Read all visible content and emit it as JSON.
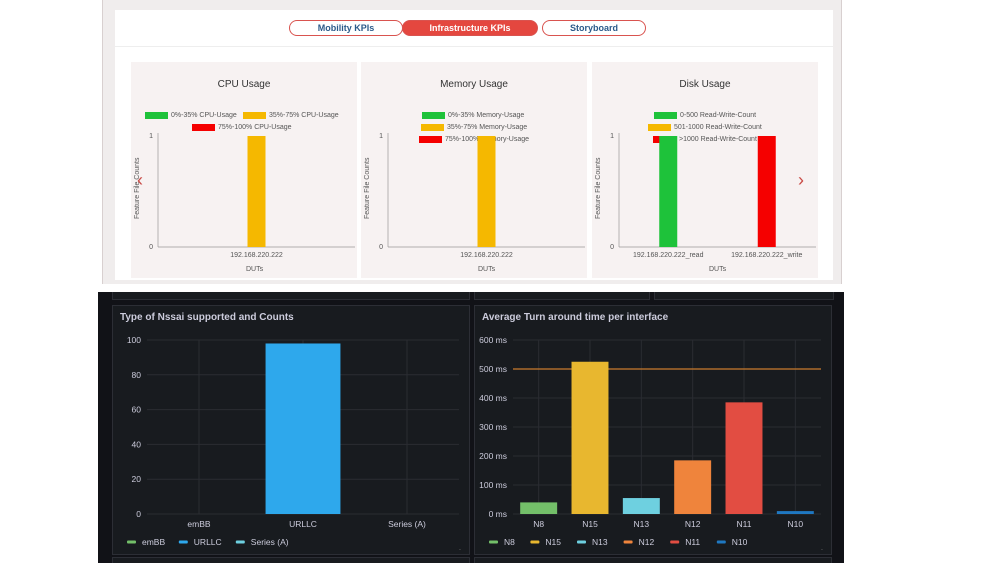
{
  "tabs": [
    {
      "label": "Mobility KPIs",
      "active": false
    },
    {
      "label": "Infrastructure KPIs",
      "active": true
    },
    {
      "label": "Storyboard",
      "active": false
    }
  ],
  "colors": {
    "green": "#1ec23a",
    "yellow": "#f5b800",
    "red": "#f50000",
    "accent": "#e4473f"
  },
  "kpi_cards": [
    {
      "title": "CPU Usage",
      "legend": [
        "0%-35% CPU-Usage",
        "35%-75% CPU-Usage",
        "75%-100% CPU-Usage"
      ],
      "ylabel": "Feature File Counts",
      "xlabel": "DUTs",
      "yticks": [
        "0",
        "1"
      ]
    },
    {
      "title": "Memory Usage",
      "legend": [
        "0%-35% Memory-Usage",
        "35%-75% Memory-Usage",
        "75%-100% Memory-Usage"
      ],
      "ylabel": "Feature File Counts",
      "xlabel": "DUTs",
      "yticks": [
        "0",
        "1"
      ]
    },
    {
      "title": "Disk Usage",
      "legend": [
        "0-500 Read-Write-Count",
        "501-1000 Read-Write-Count",
        ">1000 Read-Write-Count"
      ],
      "ylabel": "Feature File Counts",
      "xlabel": "DUTs",
      "yticks": [
        "0",
        "1"
      ]
    }
  ],
  "nav": {
    "prev_icon": "chevron-left-icon",
    "next_icon": "chevron-right-icon"
  },
  "panels": {
    "nssai": {
      "title": "Type of Nssai supported and Counts"
    },
    "turnaround": {
      "title": "Average Turn around time per interface"
    }
  },
  "chart_data": [
    {
      "type": "bar",
      "title": "CPU Usage",
      "xlabel": "DUTs",
      "ylabel": "Feature File Counts",
      "categories": [
        "192.168.220.222"
      ],
      "series": [
        {
          "name": "0%-35% CPU-Usage",
          "color": "#1ec23a",
          "values": [
            0
          ]
        },
        {
          "name": "35%-75% CPU-Usage",
          "color": "#f5b800",
          "values": [
            1
          ]
        },
        {
          "name": "75%-100% CPU-Usage",
          "color": "#f50000",
          "values": [
            0
          ]
        }
      ],
      "ylim": [
        0,
        1
      ],
      "legend": "top"
    },
    {
      "type": "bar",
      "title": "Memory Usage",
      "xlabel": "DUTs",
      "ylabel": "Feature File Counts",
      "categories": [
        "192.168.220.222"
      ],
      "series": [
        {
          "name": "0%-35% Memory-Usage",
          "color": "#1ec23a",
          "values": [
            0
          ]
        },
        {
          "name": "35%-75% Memory-Usage",
          "color": "#f5b800",
          "values": [
            1
          ]
        },
        {
          "name": "75%-100% Memory-Usage",
          "color": "#f50000",
          "values": [
            0
          ]
        }
      ],
      "ylim": [
        0,
        1
      ],
      "legend": "top"
    },
    {
      "type": "bar",
      "title": "Disk Usage",
      "xlabel": "DUTs",
      "ylabel": "Feature File Counts",
      "categories": [
        "192.168.220.222_read",
        "192.168.220.222_write"
      ],
      "series": [
        {
          "name": "0-500 Read-Write-Count",
          "color": "#1ec23a",
          "values": [
            1,
            0
          ]
        },
        {
          "name": "501-1000 Read-Write-Count",
          "color": "#f5b800",
          "values": [
            0,
            0
          ]
        },
        {
          "name": ">1000 Read-Write-Count",
          "color": "#f50000",
          "values": [
            0,
            1
          ]
        }
      ],
      "ylim": [
        0,
        1
      ],
      "legend": "top"
    },
    {
      "type": "bar",
      "title": "Type of Nssai supported and Counts",
      "categories": [
        "emBB",
        "URLLC",
        "Series (A)"
      ],
      "values": [
        0,
        98,
        0
      ],
      "colors": [
        "#73bf69",
        "#2ea8ec",
        "#6ed0e0"
      ],
      "yticks": [
        0,
        20,
        40,
        60,
        80,
        100
      ],
      "ylim": [
        0,
        100
      ],
      "grid": true,
      "legend": "bottom"
    },
    {
      "type": "bar",
      "title": "Average Turn around time per interface",
      "categories": [
        "N8",
        "N15",
        "N13",
        "N12",
        "N11",
        "N10"
      ],
      "values": [
        40,
        525,
        55,
        185,
        385,
        10
      ],
      "colors": [
        "#73bf69",
        "#e8b72f",
        "#6ed0e0",
        "#ef843c",
        "#e24d42",
        "#1f78c1"
      ],
      "yticks": [
        "0 ms",
        "100 ms",
        "200 ms",
        "300 ms",
        "400 ms",
        "500 ms",
        "600 ms"
      ],
      "ylim": [
        0,
        600
      ],
      "threshold": 500,
      "threshold_color": "#c97b2d",
      "grid": true,
      "legend": "bottom"
    }
  ]
}
